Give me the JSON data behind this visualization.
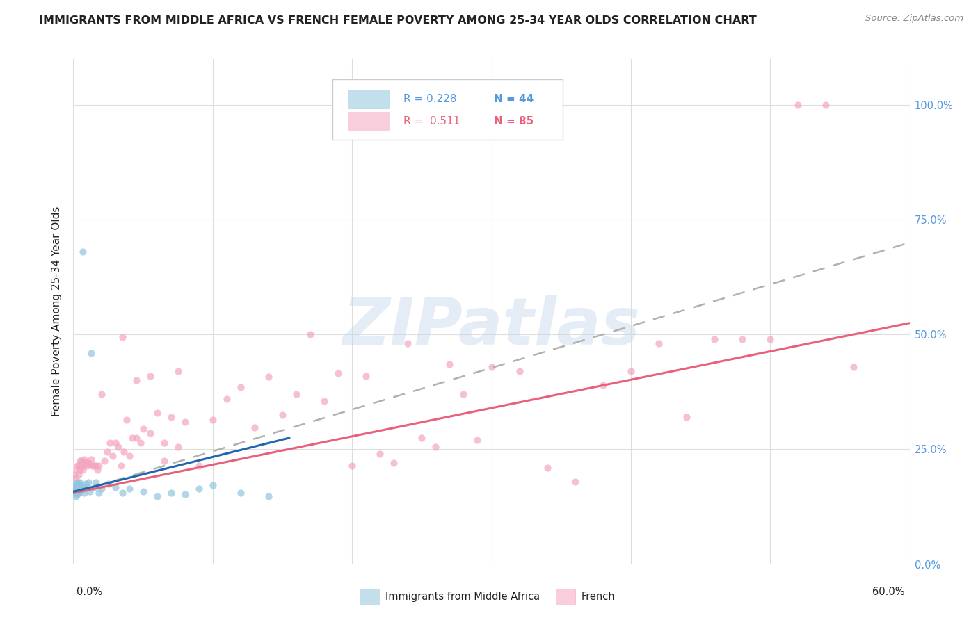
{
  "title": "IMMIGRANTS FROM MIDDLE AFRICA VS FRENCH FEMALE POVERTY AMONG 25-34 YEAR OLDS CORRELATION CHART",
  "source": "Source: ZipAtlas.com",
  "ylabel": "Female Poverty Among 25-34 Year Olds",
  "blue_color": "#92c5de",
  "pink_color": "#f4a5c0",
  "blue_line_color": "#2166ac",
  "pink_line_color": "#e8607a",
  "gray_line_color": "#b0b0b0",
  "watermark": "ZIPatlas",
  "blue_label": "Immigrants from Middle Africa",
  "pink_label": "French",
  "blue_scatter_x": [
    0.001,
    0.001,
    0.001,
    0.002,
    0.002,
    0.002,
    0.002,
    0.003,
    0.003,
    0.003,
    0.003,
    0.004,
    0.004,
    0.004,
    0.005,
    0.005,
    0.005,
    0.006,
    0.006,
    0.007,
    0.007,
    0.008,
    0.008,
    0.009,
    0.01,
    0.011,
    0.012,
    0.013,
    0.015,
    0.016,
    0.018,
    0.02,
    0.025,
    0.03,
    0.035,
    0.04,
    0.05,
    0.06,
    0.07,
    0.08,
    0.09,
    0.1,
    0.12,
    0.14
  ],
  "blue_scatter_y": [
    0.155,
    0.162,
    0.17,
    0.148,
    0.158,
    0.165,
    0.172,
    0.152,
    0.16,
    0.168,
    0.178,
    0.155,
    0.165,
    0.175,
    0.158,
    0.168,
    0.178,
    0.162,
    0.172,
    0.165,
    0.68,
    0.155,
    0.165,
    0.175,
    0.168,
    0.178,
    0.158,
    0.46,
    0.168,
    0.178,
    0.155,
    0.165,
    0.175,
    0.168,
    0.155,
    0.165,
    0.158,
    0.148,
    0.155,
    0.152,
    0.165,
    0.172,
    0.155,
    0.148
  ],
  "pink_scatter_x": [
    0.001,
    0.002,
    0.003,
    0.003,
    0.004,
    0.004,
    0.005,
    0.005,
    0.006,
    0.006,
    0.007,
    0.007,
    0.008,
    0.008,
    0.009,
    0.01,
    0.011,
    0.012,
    0.013,
    0.014,
    0.015,
    0.016,
    0.017,
    0.018,
    0.02,
    0.022,
    0.024,
    0.026,
    0.028,
    0.03,
    0.032,
    0.034,
    0.036,
    0.038,
    0.04,
    0.042,
    0.045,
    0.048,
    0.05,
    0.055,
    0.06,
    0.065,
    0.07,
    0.075,
    0.08,
    0.09,
    0.1,
    0.11,
    0.12,
    0.13,
    0.14,
    0.15,
    0.16,
    0.17,
    0.18,
    0.19,
    0.2,
    0.21,
    0.22,
    0.23,
    0.24,
    0.25,
    0.26,
    0.27,
    0.28,
    0.29,
    0.3,
    0.32,
    0.34,
    0.36,
    0.38,
    0.4,
    0.42,
    0.44,
    0.46,
    0.48,
    0.5,
    0.52,
    0.54,
    0.56,
    0.035,
    0.045,
    0.055,
    0.065,
    0.075
  ],
  "pink_scatter_y": [
    0.195,
    0.185,
    0.205,
    0.215,
    0.195,
    0.215,
    0.205,
    0.225,
    0.215,
    0.225,
    0.205,
    0.215,
    0.218,
    0.228,
    0.222,
    0.215,
    0.22,
    0.218,
    0.228,
    0.215,
    0.215,
    0.215,
    0.205,
    0.215,
    0.37,
    0.225,
    0.245,
    0.265,
    0.235,
    0.265,
    0.255,
    0.215,
    0.245,
    0.315,
    0.235,
    0.275,
    0.275,
    0.265,
    0.295,
    0.285,
    0.33,
    0.265,
    0.32,
    0.255,
    0.31,
    0.215,
    0.315,
    0.36,
    0.385,
    0.298,
    0.408,
    0.325,
    0.37,
    0.5,
    0.355,
    0.415,
    0.215,
    0.41,
    0.24,
    0.22,
    0.48,
    0.275,
    0.255,
    0.435,
    0.37,
    0.27,
    0.43,
    0.42,
    0.21,
    0.18,
    0.39,
    0.42,
    0.48,
    0.32,
    0.49,
    0.49,
    0.49,
    1.0,
    1.0,
    0.43,
    0.495,
    0.4,
    0.41,
    0.225,
    0.42
  ],
  "xlim": [
    0.0,
    0.6
  ],
  "ylim": [
    0.0,
    1.1
  ],
  "blue_trend_x": [
    0.0,
    0.155
  ],
  "blue_trend_y": [
    0.158,
    0.275
  ],
  "pink_trend_x": [
    0.0,
    0.6
  ],
  "pink_trend_y": [
    0.155,
    0.525
  ],
  "gray_trend_x": [
    0.0,
    0.6
  ],
  "gray_trend_y": [
    0.155,
    0.7
  ],
  "ytick_vals": [
    0.0,
    0.25,
    0.5,
    0.75,
    1.0
  ],
  "ytick_right_labels": [
    "0.0%",
    "25.0%",
    "50.0%",
    "75.0%",
    "100.0%"
  ],
  "title_fontsize": 11.5,
  "source_fontsize": 9.5,
  "axis_label_fontsize": 11,
  "tick_fontsize": 10.5,
  "legend_fontsize": 11,
  "scatter_size": 55,
  "scatter_alpha": 0.7,
  "right_tick_color": "#5599dd",
  "text_color": "#222222",
  "grid_color": "#dddddd"
}
